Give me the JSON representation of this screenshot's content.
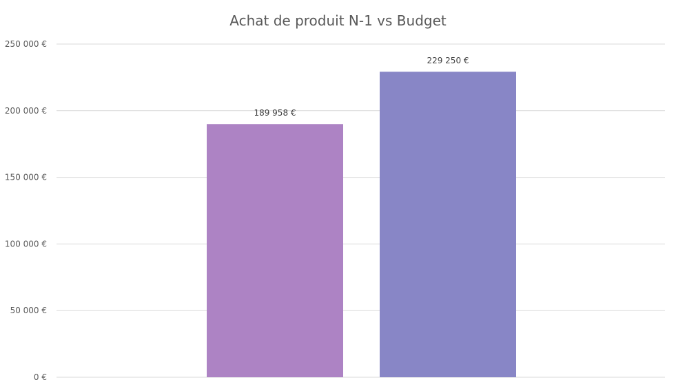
{
  "chart_data": {
    "type": "bar",
    "title": "Achat de produit N-1 vs Budget",
    "categories": [
      "",
      ""
    ],
    "values": [
      189958,
      229250
    ],
    "data_labels": [
      "189 958 €",
      "229 250 €"
    ],
    "colors": [
      "#ad83c4",
      "#8886c6"
    ],
    "ylim": [
      0,
      250000
    ],
    "yticks": [
      0,
      50000,
      100000,
      150000,
      200000,
      250000
    ],
    "ytick_labels": [
      "0 €",
      "50 000 €",
      "100 000 €",
      "150 000 €",
      "200 000 €",
      "250 000 €"
    ],
    "xlabel": "",
    "ylabel": "",
    "grid": true,
    "legend": "none"
  }
}
